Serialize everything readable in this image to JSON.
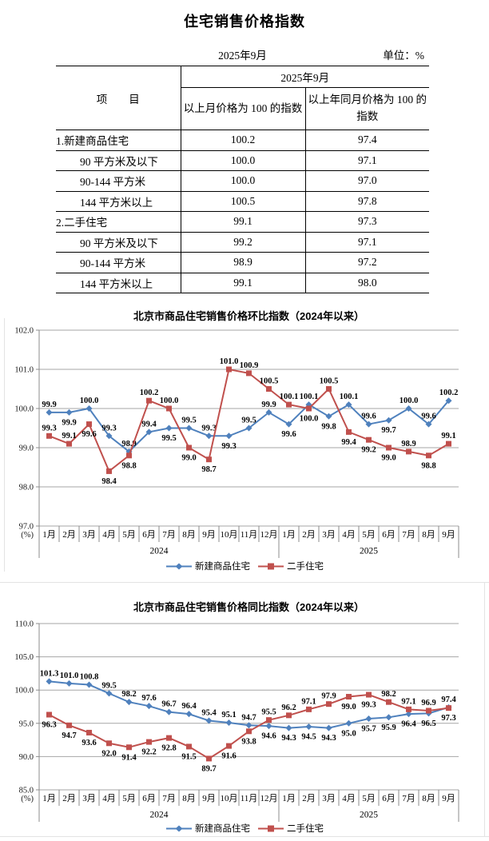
{
  "doc": {
    "title": "住宅销售价格指数",
    "period": "2025年9月",
    "unit": "单位：%"
  },
  "table": {
    "item_header": "项　　目",
    "group_header": "2025年9月",
    "mom_header": "以上月价格为 100 的指数",
    "yoy_header": "以上年同月价格为 100 的指数",
    "rows": [
      {
        "item": "1.新建商品住宅",
        "mom": "100.2",
        "yoy": "97.4",
        "indent": false
      },
      {
        "item": "90 平方米及以下",
        "mom": "100.0",
        "yoy": "97.1",
        "indent": true
      },
      {
        "item": "90-144 平方米",
        "mom": "100.0",
        "yoy": "97.0",
        "indent": true
      },
      {
        "item": "144 平方米以上",
        "mom": "100.5",
        "yoy": "97.8",
        "indent": true
      },
      {
        "item": "2.二手住宅",
        "mom": "99.1",
        "yoy": "97.3",
        "indent": false
      },
      {
        "item": "90 平方米及以下",
        "mom": "99.2",
        "yoy": "97.1",
        "indent": true
      },
      {
        "item": "90-144 平方米",
        "mom": "98.9",
        "yoy": "97.2",
        "indent": true
      },
      {
        "item": "144 平方米以上",
        "mom": "99.1",
        "yoy": "98.0",
        "indent": true
      }
    ]
  },
  "chart_data": [
    {
      "type": "line",
      "title": "北京市商品住宅销售价格环比指数（2024年以来）",
      "x": [
        "1月",
        "2月",
        "3月",
        "4月",
        "5月",
        "6月",
        "7月",
        "8月",
        "9月",
        "10月",
        "11月",
        "12月",
        "1月",
        "2月",
        "3月",
        "4月",
        "5月",
        "6月",
        "7月",
        "8月",
        "9月"
      ],
      "year_groups": [
        {
          "label": "2024",
          "count": 12
        },
        {
          "label": "2025",
          "count": 9
        }
      ],
      "ylim": [
        97.0,
        102.0
      ],
      "ytick_step": 1.0,
      "yaxis_unit": "(%)",
      "grid": true,
      "legend_position": "bottom",
      "series": [
        {
          "name": "新建商品住宅",
          "color": "#4f81bd",
          "marker": "diamond",
          "values": [
            99.9,
            99.9,
            100.0,
            99.3,
            98.9,
            99.4,
            99.5,
            99.5,
            99.3,
            99.3,
            99.5,
            99.9,
            99.6,
            100.1,
            99.8,
            100.1,
            99.6,
            99.7,
            100.0,
            99.6,
            100.2
          ],
          "label_pos": [
            "above",
            "below",
            "above",
            "above",
            "above",
            "above",
            "below",
            "above",
            "above",
            "below",
            "above",
            "above",
            "below",
            "above",
            "below",
            "above",
            "above",
            "below",
            "above",
            "above",
            "above"
          ]
        },
        {
          "name": "二手住宅",
          "color": "#c0504d",
          "marker": "square",
          "values": [
            99.3,
            99.1,
            99.6,
            98.4,
            98.8,
            100.2,
            100.0,
            99.0,
            98.7,
            101.0,
            100.9,
            100.5,
            100.1,
            100.0,
            100.5,
            99.4,
            99.2,
            99.0,
            98.9,
            98.8,
            99.1
          ],
          "label_pos": [
            "above",
            "above",
            "below",
            "below",
            "below",
            "above",
            "above",
            "below",
            "below",
            "above",
            "above",
            "above",
            "above",
            "below",
            "above",
            "below",
            "below",
            "below",
            "above",
            "below",
            "above"
          ]
        }
      ]
    },
    {
      "type": "line",
      "title": "北京市商品住宅销售价格同比指数（2024年以来）",
      "x": [
        "1月",
        "2月",
        "3月",
        "4月",
        "5月",
        "6月",
        "7月",
        "8月",
        "9月",
        "10月",
        "11月",
        "12月",
        "1月",
        "2月",
        "3月",
        "4月",
        "5月",
        "6月",
        "7月",
        "8月",
        "9月"
      ],
      "year_groups": [
        {
          "label": "2024",
          "count": 12
        },
        {
          "label": "2025",
          "count": 9
        }
      ],
      "ylim": [
        85.0,
        110.0
      ],
      "ytick_step": 5.0,
      "yaxis_unit": "(%)",
      "grid": true,
      "legend_position": "bottom",
      "series": [
        {
          "name": "新建商品住宅",
          "color": "#4f81bd",
          "marker": "diamond",
          "values": [
            101.3,
            101.0,
            100.8,
            99.5,
            98.2,
            97.6,
            96.7,
            96.4,
            95.4,
            95.1,
            94.7,
            94.6,
            94.3,
            94.5,
            94.3,
            95.0,
            95.7,
            95.9,
            96.4,
            96.5,
            97.4
          ],
          "label_pos": [
            "above",
            "above",
            "above",
            "above",
            "above",
            "above",
            "above",
            "above",
            "above",
            "above",
            "above",
            "below",
            "below",
            "below",
            "below",
            "below",
            "below",
            "below",
            "below",
            "below",
            "above"
          ]
        },
        {
          "name": "二手住宅",
          "color": "#c0504d",
          "marker": "square",
          "values": [
            96.3,
            94.7,
            93.6,
            92.0,
            91.4,
            92.2,
            92.8,
            91.5,
            89.7,
            91.6,
            93.8,
            95.5,
            96.2,
            97.1,
            97.9,
            99.0,
            99.3,
            98.2,
            97.1,
            96.9,
            97.3
          ],
          "label_pos": [
            "below",
            "below",
            "below",
            "below",
            "below",
            "below",
            "below",
            "below",
            "below",
            "below",
            "below",
            "above",
            "above",
            "above",
            "above",
            "below",
            "below",
            "above",
            "above",
            "above",
            "below"
          ]
        }
      ]
    }
  ]
}
